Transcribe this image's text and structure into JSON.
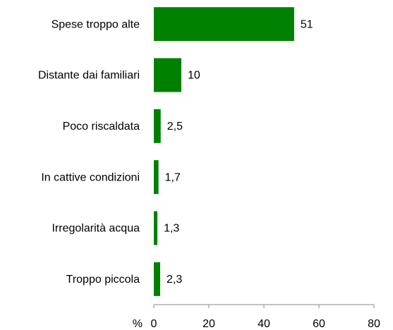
{
  "chart_data": {
    "type": "hbar",
    "categories": [
      "Spese troppo alte",
      "Distante dai familiari",
      "Poco riscaldata",
      "In cattive condizioni",
      "Irregolarità acqua",
      "Troppo piccola"
    ],
    "values": [
      51,
      10,
      2.5,
      1.7,
      1.3,
      2.3
    ],
    "value_labels": [
      "51",
      "10",
      "2,5",
      "1,7",
      "1,3",
      "2,3"
    ],
    "color": "#008000",
    "xlabel": "%",
    "xlim": [
      0,
      80
    ],
    "xticks": [
      0,
      20,
      40,
      60,
      80
    ]
  }
}
